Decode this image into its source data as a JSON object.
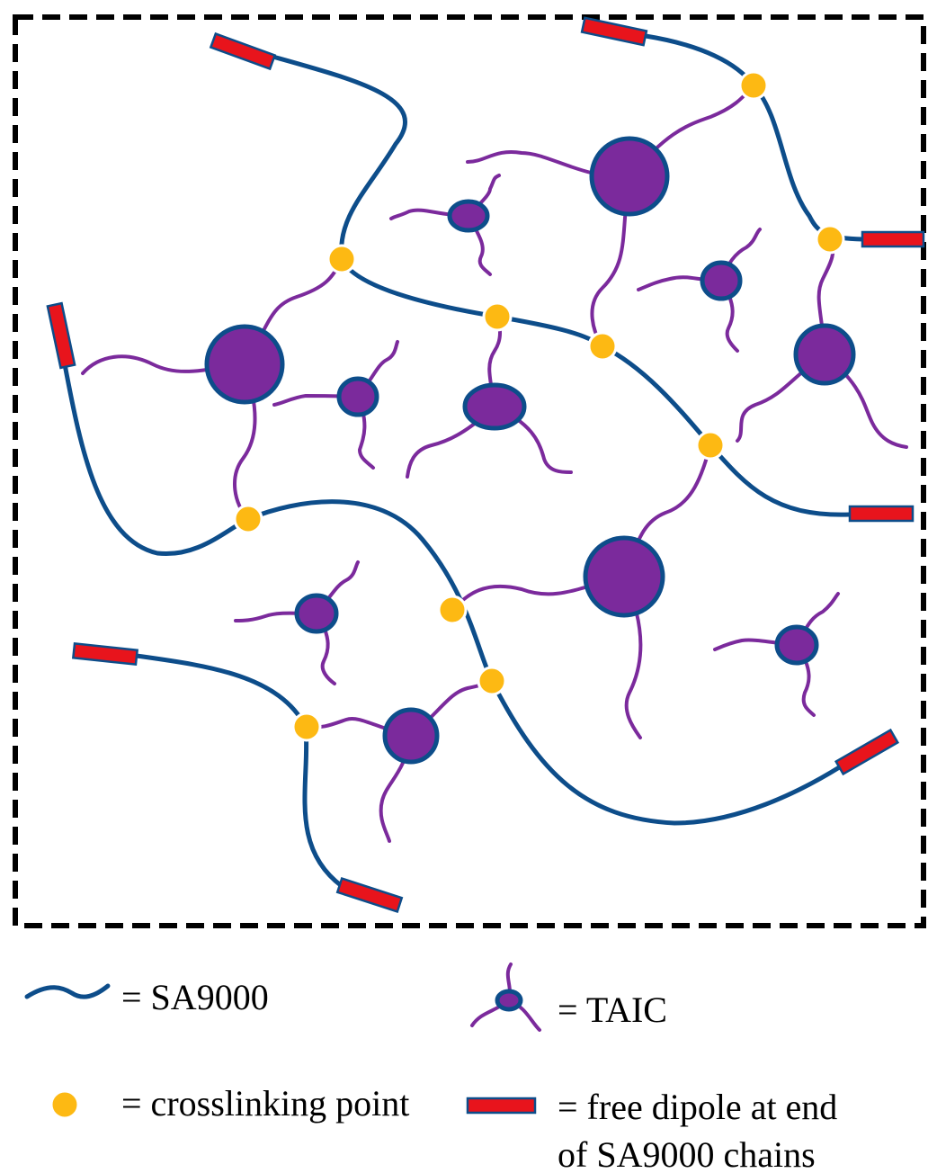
{
  "legend": {
    "sa9000": "= SA9000",
    "taic": "= TAIC",
    "crosslink": "= crosslinking point",
    "dipole": [
      "= free dipole at end",
      "of SA9000 chains"
    ]
  }
}
